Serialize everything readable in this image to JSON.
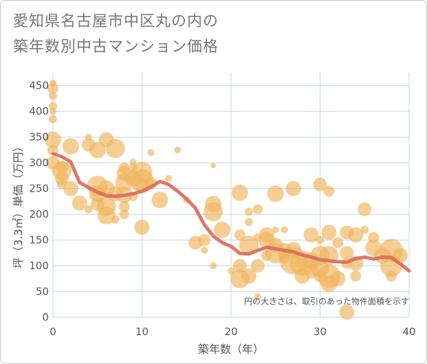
{
  "title": {
    "line1": "愛知県名古屋市中区丸の内の",
    "line2": "築年数別中古マンション価格"
  },
  "colors": {
    "bubble": "#f0b45a",
    "line": "#d9695a",
    "grid": "#c4d6e4",
    "plot_bg": "#ffffff"
  },
  "chart_data": {
    "type": "scatter",
    "title": "愛知県名古屋市中区丸の内の築年数別中古マンション価格",
    "xlabel": "築年数（年）",
    "ylabel": "坪（3.3㎡）単価（万円）",
    "xlim": [
      0,
      40
    ],
    "ylim": [
      0,
      475
    ],
    "x_ticks": [
      "0",
      "10",
      "20",
      "30",
      "40"
    ],
    "y_ticks": [
      "0",
      "50",
      "100",
      "150",
      "200",
      "250",
      "300",
      "350",
      "400",
      "450"
    ],
    "grid": true,
    "note": "円の大きさは、取引のあった物件面積を示す",
    "trend": {
      "x": [
        0,
        1,
        2,
        3,
        4,
        5,
        6,
        7,
        8,
        9,
        10,
        11,
        12,
        13,
        14,
        15,
        16,
        17,
        18,
        19,
        20,
        21,
        22,
        23,
        24,
        25,
        26,
        27,
        28,
        29,
        30,
        31,
        32,
        33,
        34,
        35,
        36,
        37,
        38,
        39,
        40
      ],
      "y": [
        318,
        312,
        302,
        262,
        252,
        243,
        236,
        235,
        237,
        240,
        245,
        253,
        264,
        258,
        245,
        230,
        212,
        180,
        158,
        145,
        138,
        124,
        123,
        130,
        136,
        133,
        130,
        127,
        121,
        117,
        112,
        110,
        108,
        107,
        114,
        117,
        113,
        117,
        116,
        104,
        90
      ]
    },
    "bubbles": [
      {
        "x": 0,
        "y": 455,
        "s": 5
      },
      {
        "x": 0,
        "y": 445,
        "s": 8
      },
      {
        "x": 0,
        "y": 430,
        "s": 6
      },
      {
        "x": 0,
        "y": 410,
        "s": 6
      },
      {
        "x": 0,
        "y": 400,
        "s": 5
      },
      {
        "x": 0,
        "y": 385,
        "s": 6
      },
      {
        "x": 0,
        "y": 345,
        "s": 12
      },
      {
        "x": 0,
        "y": 325,
        "s": 8
      },
      {
        "x": 0,
        "y": 300,
        "s": 10
      },
      {
        "x": 1,
        "y": 292,
        "s": 9
      },
      {
        "x": 1,
        "y": 285,
        "s": 14
      },
      {
        "x": 1,
        "y": 270,
        "s": 10
      },
      {
        "x": 1,
        "y": 258,
        "s": 7
      },
      {
        "x": 2,
        "y": 332,
        "s": 12
      },
      {
        "x": 2,
        "y": 250,
        "s": 11
      },
      {
        "x": 3,
        "y": 222,
        "s": 11
      },
      {
        "x": 4,
        "y": 335,
        "s": 10
      },
      {
        "x": 4,
        "y": 350,
        "s": 5
      },
      {
        "x": 4,
        "y": 210,
        "s": 6
      },
      {
        "x": 5,
        "y": 325,
        "s": 12
      },
      {
        "x": 5,
        "y": 255,
        "s": 15
      },
      {
        "x": 5,
        "y": 240,
        "s": 12
      },
      {
        "x": 5,
        "y": 220,
        "s": 10
      },
      {
        "x": 6,
        "y": 345,
        "s": 11
      },
      {
        "x": 6,
        "y": 250,
        "s": 12
      },
      {
        "x": 6,
        "y": 215,
        "s": 14
      },
      {
        "x": 6,
        "y": 198,
        "s": 13
      },
      {
        "x": 7,
        "y": 328,
        "s": 14
      },
      {
        "x": 7,
        "y": 240,
        "s": 11
      },
      {
        "x": 7,
        "y": 190,
        "s": 6
      },
      {
        "x": 8,
        "y": 290,
        "s": 8
      },
      {
        "x": 8,
        "y": 280,
        "s": 11
      },
      {
        "x": 8,
        "y": 262,
        "s": 13
      },
      {
        "x": 8,
        "y": 238,
        "s": 12
      },
      {
        "x": 8,
        "y": 215,
        "s": 8
      },
      {
        "x": 8,
        "y": 200,
        "s": 7
      },
      {
        "x": 9,
        "y": 302,
        "s": 5
      },
      {
        "x": 9,
        "y": 292,
        "s": 6
      },
      {
        "x": 9,
        "y": 270,
        "s": 12
      },
      {
        "x": 9,
        "y": 235,
        "s": 7
      },
      {
        "x": 10,
        "y": 282,
        "s": 15
      },
      {
        "x": 10,
        "y": 265,
        "s": 17
      },
      {
        "x": 10,
        "y": 255,
        "s": 11
      },
      {
        "x": 10,
        "y": 175,
        "s": 11
      },
      {
        "x": 11,
        "y": 320,
        "s": 5
      },
      {
        "x": 11,
        "y": 260,
        "s": 9
      },
      {
        "x": 12,
        "y": 228,
        "s": 12
      },
      {
        "x": 13,
        "y": 270,
        "s": 5
      },
      {
        "x": 14,
        "y": 325,
        "s": 5
      },
      {
        "x": 15,
        "y": 228,
        "s": 5
      },
      {
        "x": 16,
        "y": 145,
        "s": 10
      },
      {
        "x": 17,
        "y": 150,
        "s": 9
      },
      {
        "x": 17,
        "y": 130,
        "s": 5
      },
      {
        "x": 18,
        "y": 295,
        "s": 4
      },
      {
        "x": 18,
        "y": 220,
        "s": 12
      },
      {
        "x": 18,
        "y": 205,
        "s": 14
      },
      {
        "x": 18,
        "y": 100,
        "s": 5
      },
      {
        "x": 19,
        "y": 170,
        "s": 12
      },
      {
        "x": 20,
        "y": 90,
        "s": 5
      },
      {
        "x": 21,
        "y": 242,
        "s": 12
      },
      {
        "x": 21,
        "y": 160,
        "s": 8
      },
      {
        "x": 21,
        "y": 100,
        "s": 10
      },
      {
        "x": 21,
        "y": 75,
        "s": 14
      },
      {
        "x": 22,
        "y": 205,
        "s": 6
      },
      {
        "x": 22,
        "y": 185,
        "s": 6
      },
      {
        "x": 22,
        "y": 140,
        "s": 14
      },
      {
        "x": 22,
        "y": 80,
        "s": 11
      },
      {
        "x": 23,
        "y": 210,
        "s": 7
      },
      {
        "x": 23,
        "y": 155,
        "s": 6
      },
      {
        "x": 23,
        "y": 100,
        "s": 10
      },
      {
        "x": 23,
        "y": 40,
        "s": 5
      },
      {
        "x": 24,
        "y": 160,
        "s": 11
      },
      {
        "x": 24,
        "y": 150,
        "s": 12
      },
      {
        "x": 24,
        "y": 120,
        "s": 8
      },
      {
        "x": 25,
        "y": 240,
        "s": 12
      },
      {
        "x": 25,
        "y": 170,
        "s": 5
      },
      {
        "x": 25,
        "y": 140,
        "s": 11
      },
      {
        "x": 25,
        "y": 125,
        "s": 15
      },
      {
        "x": 26,
        "y": 170,
        "s": 5
      },
      {
        "x": 26,
        "y": 130,
        "s": 11
      },
      {
        "x": 26,
        "y": 115,
        "s": 8
      },
      {
        "x": 27,
        "y": 250,
        "s": 11
      },
      {
        "x": 27,
        "y": 130,
        "s": 12
      },
      {
        "x": 27,
        "y": 110,
        "s": 20
      },
      {
        "x": 28,
        "y": 105,
        "s": 18
      },
      {
        "x": 28,
        "y": 80,
        "s": 11
      },
      {
        "x": 29,
        "y": 160,
        "s": 11
      },
      {
        "x": 29,
        "y": 110,
        "s": 12
      },
      {
        "x": 29,
        "y": 90,
        "s": 11
      },
      {
        "x": 30,
        "y": 258,
        "s": 10
      },
      {
        "x": 30,
        "y": 150,
        "s": 6
      },
      {
        "x": 30,
        "y": 120,
        "s": 14
      },
      {
        "x": 30,
        "y": 95,
        "s": 13
      },
      {
        "x": 30,
        "y": 80,
        "s": 9
      },
      {
        "x": 31,
        "y": 245,
        "s": 8
      },
      {
        "x": 31,
        "y": 165,
        "s": 11
      },
      {
        "x": 31,
        "y": 120,
        "s": 14
      },
      {
        "x": 31,
        "y": 80,
        "s": 17
      },
      {
        "x": 31,
        "y": 65,
        "s": 12
      },
      {
        "x": 32,
        "y": 145,
        "s": 8
      },
      {
        "x": 32,
        "y": 75,
        "s": 11
      },
      {
        "x": 33,
        "y": 165,
        "s": 10
      },
      {
        "x": 33,
        "y": 125,
        "s": 10
      },
      {
        "x": 33,
        "y": 105,
        "s": 8
      },
      {
        "x": 33,
        "y": 10,
        "s": 11
      },
      {
        "x": 34,
        "y": 160,
        "s": 11
      },
      {
        "x": 34,
        "y": 105,
        "s": 11
      },
      {
        "x": 34,
        "y": 80,
        "s": 8
      },
      {
        "x": 35,
        "y": 210,
        "s": 10
      },
      {
        "x": 35,
        "y": 170,
        "s": 6
      },
      {
        "x": 36,
        "y": 155,
        "s": 8
      },
      {
        "x": 36,
        "y": 135,
        "s": 12
      },
      {
        "x": 37,
        "y": 120,
        "s": 12
      },
      {
        "x": 38,
        "y": 130,
        "s": 17
      },
      {
        "x": 38,
        "y": 100,
        "s": 16
      },
      {
        "x": 38,
        "y": 80,
        "s": 8
      },
      {
        "x": 39,
        "y": 120,
        "s": 11
      }
    ]
  }
}
